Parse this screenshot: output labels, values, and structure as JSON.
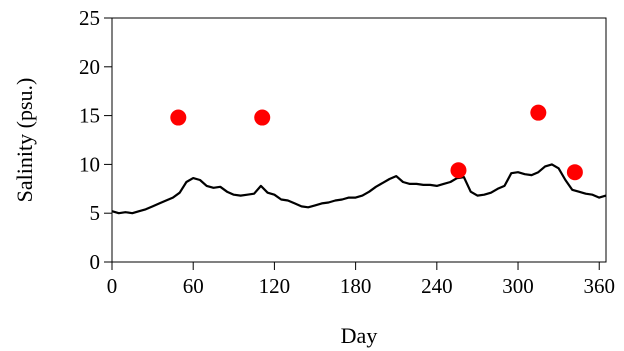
{
  "chart_data": {
    "type": "line",
    "xlabel": "Day",
    "ylabel": "Salinity (psu.)",
    "xlim": [
      0,
      365
    ],
    "ylim": [
      0,
      25
    ],
    "xticks": [
      0,
      60,
      120,
      180,
      240,
      300,
      360
    ],
    "yticks": [
      0,
      5,
      10,
      15,
      20,
      25
    ],
    "grid": false,
    "legend": "none",
    "series": [
      {
        "kind": "line",
        "color": "#000000",
        "x": [
          0,
          5,
          10,
          15,
          20,
          25,
          30,
          35,
          40,
          45,
          50,
          55,
          60,
          65,
          70,
          75,
          80,
          85,
          90,
          95,
          100,
          105,
          110,
          115,
          120,
          125,
          130,
          135,
          140,
          145,
          150,
          155,
          160,
          165,
          170,
          175,
          180,
          185,
          190,
          195,
          200,
          205,
          210,
          215,
          220,
          225,
          230,
          235,
          240,
          245,
          250,
          255,
          260,
          265,
          270,
          275,
          280,
          285,
          290,
          295,
          300,
          305,
          310,
          315,
          320,
          325,
          330,
          335,
          340,
          345,
          350,
          355,
          360,
          365
        ],
        "y": [
          5.2,
          5.0,
          5.1,
          5.0,
          5.2,
          5.4,
          5.7,
          6.0,
          6.3,
          6.6,
          7.1,
          8.2,
          8.6,
          8.4,
          7.8,
          7.6,
          7.7,
          7.2,
          6.9,
          6.8,
          6.9,
          7.0,
          7.8,
          7.1,
          6.9,
          6.4,
          6.3,
          6.0,
          5.7,
          5.6,
          5.8,
          6.0,
          6.1,
          6.3,
          6.4,
          6.6,
          6.6,
          6.8,
          7.2,
          7.7,
          8.1,
          8.5,
          8.8,
          8.2,
          8.0,
          8.0,
          7.9,
          7.9,
          7.8,
          8.0,
          8.2,
          8.6,
          8.7,
          7.2,
          6.8,
          6.9,
          7.1,
          7.5,
          7.8,
          9.1,
          9.2,
          9.0,
          8.9,
          9.2,
          9.8,
          10.0,
          9.6,
          8.4,
          7.4,
          7.2,
          7.0,
          6.9,
          6.6,
          6.8
        ]
      },
      {
        "kind": "scatter",
        "color": "#ff0000",
        "x": [
          49,
          111,
          256,
          315,
          342
        ],
        "y": [
          14.8,
          14.8,
          9.4,
          15.3,
          9.2
        ]
      }
    ]
  }
}
